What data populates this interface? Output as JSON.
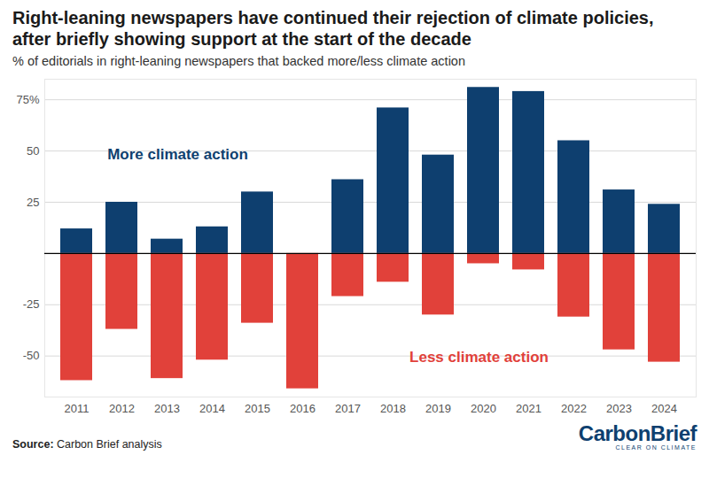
{
  "chart_data": {
    "type": "bar",
    "title": "Right-leaning newspapers have continued their rejection of climate policies, after briefly showing support at the start of the decade",
    "subtitle": "% of editorials in right-leaning newspapers that backed more/less climate action",
    "source": "Source: Carbon Brief analysis",
    "logo": "CarbonBrief",
    "logo_tagline": "CLEAR ON CLIMATE",
    "categories": [
      "2011",
      "2012",
      "2013",
      "2014",
      "2015",
      "2016",
      "2017",
      "2018",
      "2019",
      "2020",
      "2021",
      "2022",
      "2023",
      "2024"
    ],
    "series": [
      {
        "name": "More climate action",
        "color": "#0e3f6f",
        "values": [
          12,
          25,
          7,
          13,
          30,
          0,
          36,
          71,
          48,
          81,
          79,
          55,
          31,
          24
        ]
      },
      {
        "name": "Less climate action",
        "color": "#e1413a",
        "values": [
          -62,
          -37,
          -61,
          -52,
          -34,
          -66,
          -21,
          -14,
          -30,
          -5,
          -8,
          -31,
          -47,
          -53
        ]
      }
    ],
    "ylim": [
      -70,
      85
    ],
    "yticks": [
      {
        "value": 75,
        "label": "75%"
      },
      50,
      25,
      -25,
      -50
    ],
    "grid": true
  }
}
